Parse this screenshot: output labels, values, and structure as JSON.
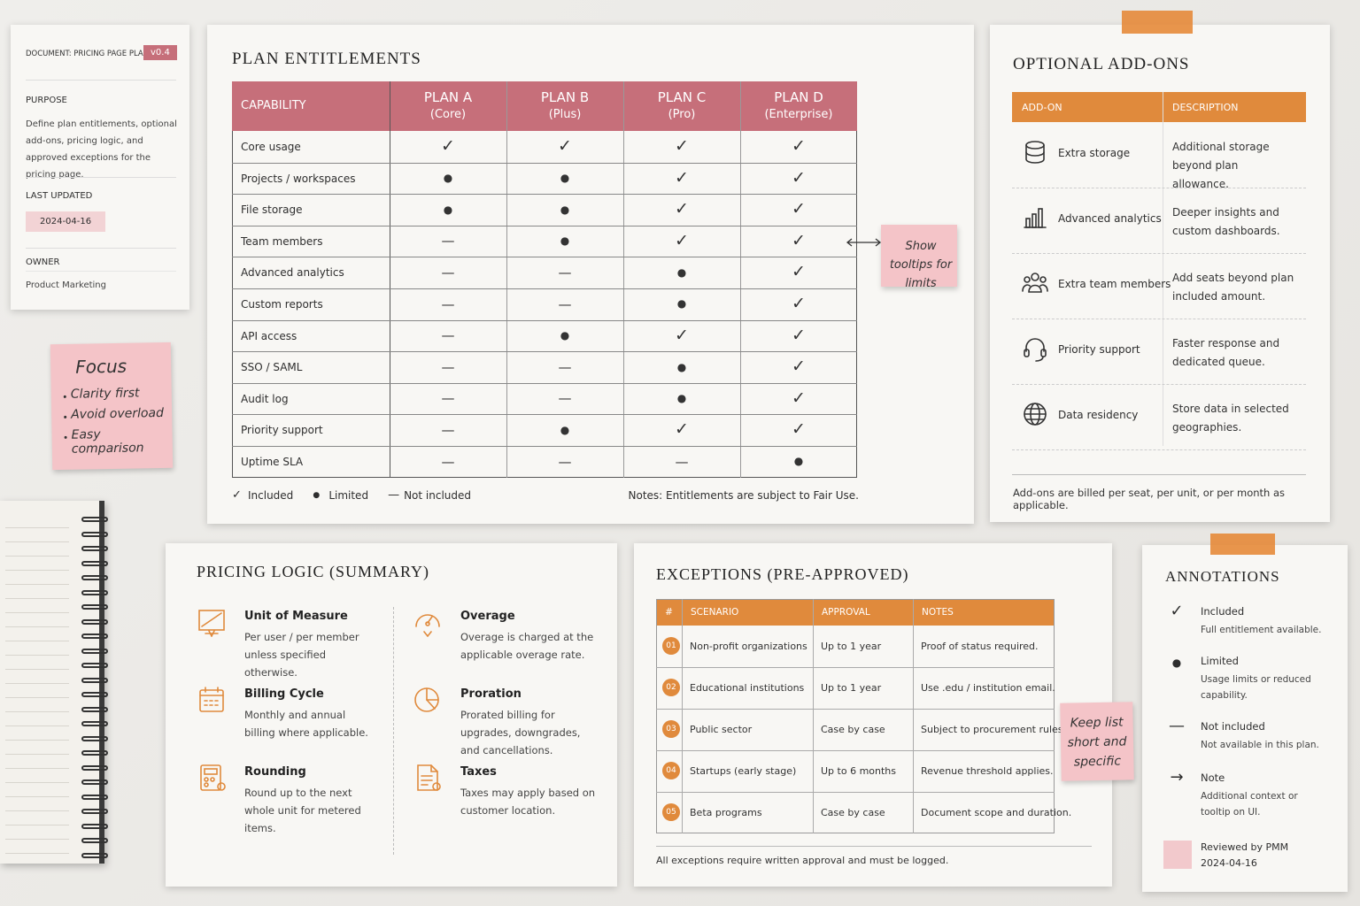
{
  "doc_card": {
    "label": "DOCUMENT: PRICING PAGE PLAN",
    "version": "v0.4",
    "purpose_label": "PURPOSE",
    "purpose": "Define plan entitlements, optional add-ons, pricing logic, and approved exceptions for the pricing page.",
    "updated_label": "LAST UPDATED",
    "updated": "2024-04-16",
    "owner_label": "OWNER",
    "owner": "Product Marketing"
  },
  "focus_note": {
    "title": "Focus",
    "items": [
      "Clarity first",
      "Avoid overload",
      "Easy comparison"
    ]
  },
  "entitlements": {
    "title": "PLAN ENTITLEMENTS",
    "capability_header": "CAPABILITY",
    "plans": [
      {
        "name": "PLAN A",
        "sub": "(Core)"
      },
      {
        "name": "PLAN B",
        "sub": "(Plus)"
      },
      {
        "name": "PLAN C",
        "sub": "(Pro)"
      },
      {
        "name": "PLAN D",
        "sub": "(Enterprise)"
      }
    ],
    "rows": [
      [
        "Core usage",
        "✓",
        "✓",
        "✓",
        "✓"
      ],
      [
        "Projects / workspaces",
        "●",
        "●",
        "✓",
        "✓"
      ],
      [
        "File storage",
        "●",
        "●",
        "✓",
        "✓"
      ],
      [
        "Team members",
        "—",
        "●",
        "✓",
        "✓"
      ],
      [
        "Advanced analytics",
        "—",
        "—",
        "●",
        "✓"
      ],
      [
        "Custom reports",
        "—",
        "—",
        "●",
        "✓"
      ],
      [
        "API access",
        "—",
        "●",
        "✓",
        "✓"
      ],
      [
        "SSO / SAML",
        "—",
        "—",
        "●",
        "✓"
      ],
      [
        "Audit log",
        "—",
        "—",
        "●",
        "✓"
      ],
      [
        "Priority support",
        "—",
        "●",
        "✓",
        "✓"
      ],
      [
        "Uptime SLA",
        "—",
        "—",
        "—",
        "●"
      ]
    ],
    "legend": [
      {
        "symbol": "✓",
        "label": "Included"
      },
      {
        "symbol": "●",
        "label": "Limited"
      },
      {
        "symbol": "—",
        "label": "Not included"
      }
    ],
    "notes": "Notes: Entitlements are subject to Fair Use.",
    "tooltip_note": "Show tooltips for limits"
  },
  "addons": {
    "title": "OPTIONAL ADD-ONS",
    "header": [
      "ADD-ON",
      "DESCRIPTION"
    ],
    "rows": [
      [
        "Extra storage",
        "Additional storage beyond plan allowance."
      ],
      [
        "Advanced analytics",
        "Deeper insights and custom dashboards."
      ],
      [
        "Extra team members",
        "Add seats beyond plan included amount."
      ],
      [
        "Priority support",
        "Faster response and dedicated queue."
      ],
      [
        "Data residency",
        "Store data in selected geographies."
      ]
    ],
    "footer": "Add-ons are billed per seat, per unit, or per month as applicable."
  },
  "pricing_logic": {
    "title": "PRICING LOGIC (SUMMARY)",
    "items": [
      {
        "title": "Unit of Measure",
        "text": "Per user / per member unless specified otherwise."
      },
      {
        "title": "Billing Cycle",
        "text": "Monthly and annual billing where applicable."
      },
      {
        "title": "Rounding",
        "text": "Round up to the next whole unit for metered items."
      },
      {
        "title": "Overage",
        "text": "Overage is charged at the applicable overage rate."
      },
      {
        "title": "Proration",
        "text": "Prorated billing for upgrades, downgrades, and cancellations."
      },
      {
        "title": "Taxes",
        "text": "Taxes may apply based on customer location."
      }
    ]
  },
  "exceptions": {
    "title": "EXCEPTIONS (PRE-APPROVED)",
    "header": [
      "#",
      "SCENARIO",
      "APPROVAL",
      "NOTES"
    ],
    "rows": [
      [
        "01",
        "Non-profit organizations",
        "Up to 1 year",
        "Proof of status required."
      ],
      [
        "02",
        "Educational institutions",
        "Up to 1 year",
        "Use .edu / institution email."
      ],
      [
        "03",
        "Public sector",
        "Case by case",
        "Subject to procurement rules."
      ],
      [
        "04",
        "Startups (early stage)",
        "Up to 6 months",
        "Revenue threshold applies."
      ],
      [
        "05",
        "Beta programs",
        "Case by case",
        "Document scope and duration."
      ]
    ],
    "footer": "All exceptions require written approval and must be logged.",
    "sticky_note": "Keep list short and specific"
  },
  "annotations": {
    "title": "ANNOTATIONS",
    "items": [
      {
        "symbol": "✓",
        "title": "Included",
        "text": "Full entitlement available."
      },
      {
        "symbol": "●",
        "title": "Limited",
        "text": "Usage limits or reduced capability."
      },
      {
        "symbol": "—",
        "title": "Not included",
        "text": "Not available in this plan."
      },
      {
        "symbol": "→",
        "title": "Note",
        "text": "Additional context or tooltip on UI."
      }
    ],
    "reviewed": {
      "title": "Reviewed by PMM",
      "date": "2024-04-16"
    }
  }
}
